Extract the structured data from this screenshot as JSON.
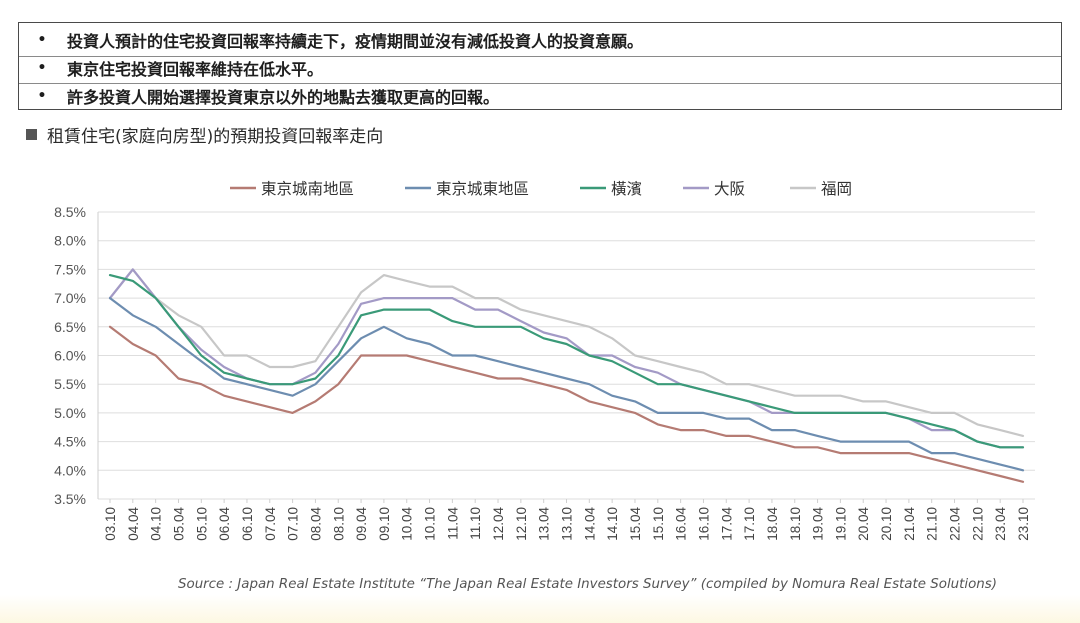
{
  "bullets": [
    {
      "text": "投資人預計的住宅投資回報率持續走下，疫情期間並沒有減低投資人的投資意願。"
    },
    {
      "text": "東京住宅投資回報率維持在低水平。"
    },
    {
      "text": "許多投資人開始選擇投資東京以外的地點去獲取更高的回報。"
    }
  ],
  "bullet_symbol": "•",
  "chart_title": "租賃住宅(家庭向房型)的預期投資回報率走向",
  "source": "Source : Japan Real Estate Institute “The Japan Real Estate Investors Survey” (compiled by Nomura Real Estate Solutions)",
  "chart_data": {
    "type": "line",
    "title": "租賃住宅(家庭向房型)的預期投資回報率走向",
    "xlabel": "",
    "ylabel": "",
    "ylim": [
      3.5,
      8.5
    ],
    "yticks": [
      "8.5%",
      "8.0%",
      "7.5%",
      "7.0%",
      "6.5%",
      "6.0%",
      "5.5%",
      "5.0%",
      "4.5%",
      "4.0%",
      "3.5%"
    ],
    "grid": true,
    "legend_position": "top",
    "x": [
      "03.10",
      "04.04",
      "04.10",
      "05.04",
      "05.10",
      "06.04",
      "06.10",
      "07.04",
      "07.10",
      "08.04",
      "08.10",
      "09.04",
      "09.10",
      "10.04",
      "10.10",
      "11.04",
      "11.10",
      "12.04",
      "12.10",
      "13.04",
      "13.10",
      "14.04",
      "14.10",
      "15.04",
      "15.10",
      "16.04",
      "16.10",
      "17.04",
      "17.10",
      "18.04",
      "18.10",
      "19.04",
      "19.10",
      "20.04",
      "20.10",
      "21.04",
      "21.10",
      "22.04",
      "22.10",
      "23.04",
      "23.10"
    ],
    "series": [
      {
        "name": "東京城南地區",
        "color": "#b57b73",
        "values": [
          6.5,
          6.2,
          6.0,
          5.6,
          5.5,
          5.3,
          5.2,
          5.1,
          5.0,
          5.2,
          5.5,
          6.0,
          6.0,
          6.0,
          5.9,
          5.8,
          5.7,
          5.6,
          5.6,
          5.5,
          5.4,
          5.2,
          5.1,
          5.0,
          4.8,
          4.7,
          4.7,
          4.6,
          4.6,
          4.5,
          4.4,
          4.4,
          4.3,
          4.3,
          4.3,
          4.3,
          4.2,
          4.1,
          4.0,
          3.9,
          3.8
        ]
      },
      {
        "name": "東京城東地區",
        "color": "#6d8db0",
        "values": [
          7.0,
          6.7,
          6.5,
          6.2,
          5.9,
          5.6,
          5.5,
          5.4,
          5.3,
          5.5,
          5.9,
          6.3,
          6.5,
          6.3,
          6.2,
          6.0,
          6.0,
          5.9,
          5.8,
          5.7,
          5.6,
          5.5,
          5.3,
          5.2,
          5.0,
          5.0,
          5.0,
          4.9,
          4.9,
          4.7,
          4.7,
          4.6,
          4.5,
          4.5,
          4.5,
          4.5,
          4.3,
          4.3,
          4.2,
          4.1,
          4.0
        ]
      },
      {
        "name": "橫濱",
        "color": "#3a9a78",
        "values": [
          7.4,
          7.3,
          7.0,
          6.5,
          6.0,
          5.7,
          5.6,
          5.5,
          5.5,
          5.6,
          6.0,
          6.7,
          6.8,
          6.8,
          6.8,
          6.6,
          6.5,
          6.5,
          6.5,
          6.3,
          6.2,
          6.0,
          5.9,
          5.7,
          5.5,
          5.5,
          5.4,
          5.3,
          5.2,
          5.1,
          5.0,
          5.0,
          5.0,
          5.0,
          5.0,
          4.9,
          4.8,
          4.7,
          4.5,
          4.4,
          4.4
        ]
      },
      {
        "name": "大阪",
        "color": "#a39ac6",
        "values": [
          7.0,
          7.5,
          7.0,
          6.5,
          6.1,
          5.8,
          5.6,
          5.5,
          5.5,
          5.7,
          6.2,
          6.9,
          7.0,
          7.0,
          7.0,
          7.0,
          6.8,
          6.8,
          6.6,
          6.4,
          6.3,
          6.0,
          6.0,
          5.8,
          5.7,
          5.5,
          5.4,
          5.3,
          5.2,
          5.0,
          5.0,
          5.0,
          5.0,
          5.0,
          5.0,
          4.9,
          4.7,
          4.7,
          4.5,
          4.4,
          4.4
        ]
      },
      {
        "name": "福岡",
        "color": "#c7c7c7",
        "values": [
          7.0,
          7.5,
          7.0,
          6.7,
          6.5,
          6.0,
          6.0,
          5.8,
          5.8,
          5.9,
          6.5,
          7.1,
          7.4,
          7.3,
          7.2,
          7.2,
          7.0,
          7.0,
          6.8,
          6.7,
          6.6,
          6.5,
          6.3,
          6.0,
          5.9,
          5.8,
          5.7,
          5.5,
          5.5,
          5.4,
          5.3,
          5.3,
          5.3,
          5.2,
          5.2,
          5.1,
          5.0,
          5.0,
          4.8,
          4.7,
          4.6
        ]
      }
    ]
  }
}
